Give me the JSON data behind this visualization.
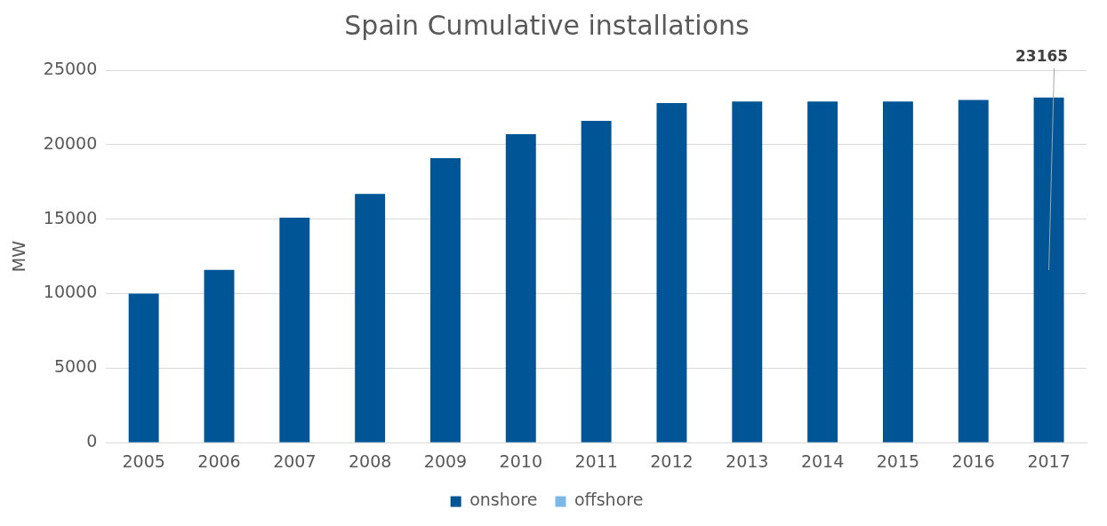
{
  "chart_data": {
    "type": "bar",
    "title": "Spain Cumulative installations",
    "ylabel": "MW",
    "categories": [
      "2005",
      "2006",
      "2007",
      "2008",
      "2009",
      "2010",
      "2011",
      "2012",
      "2013",
      "2014",
      "2015",
      "2016",
      "2017"
    ],
    "series": [
      {
        "name": "onshore",
        "color": "#005596",
        "values": [
          10000,
          11600,
          15100,
          16700,
          19100,
          20700,
          21600,
          22800,
          22900,
          22900,
          22900,
          23000,
          23165
        ]
      },
      {
        "name": "offshore",
        "color": "#7ab8e6",
        "values": [
          0,
          0,
          0,
          0,
          0,
          0,
          0,
          0,
          0,
          0,
          0,
          0,
          0
        ]
      }
    ],
    "stacked": true,
    "ylim": [
      0,
      25000
    ],
    "yticks": [
      0,
      5000,
      10000,
      15000,
      20000,
      25000
    ],
    "grid": "y",
    "legend": "bottom",
    "annotations": [
      {
        "text": "23165",
        "x": "2017",
        "y": 23165
      }
    ]
  }
}
